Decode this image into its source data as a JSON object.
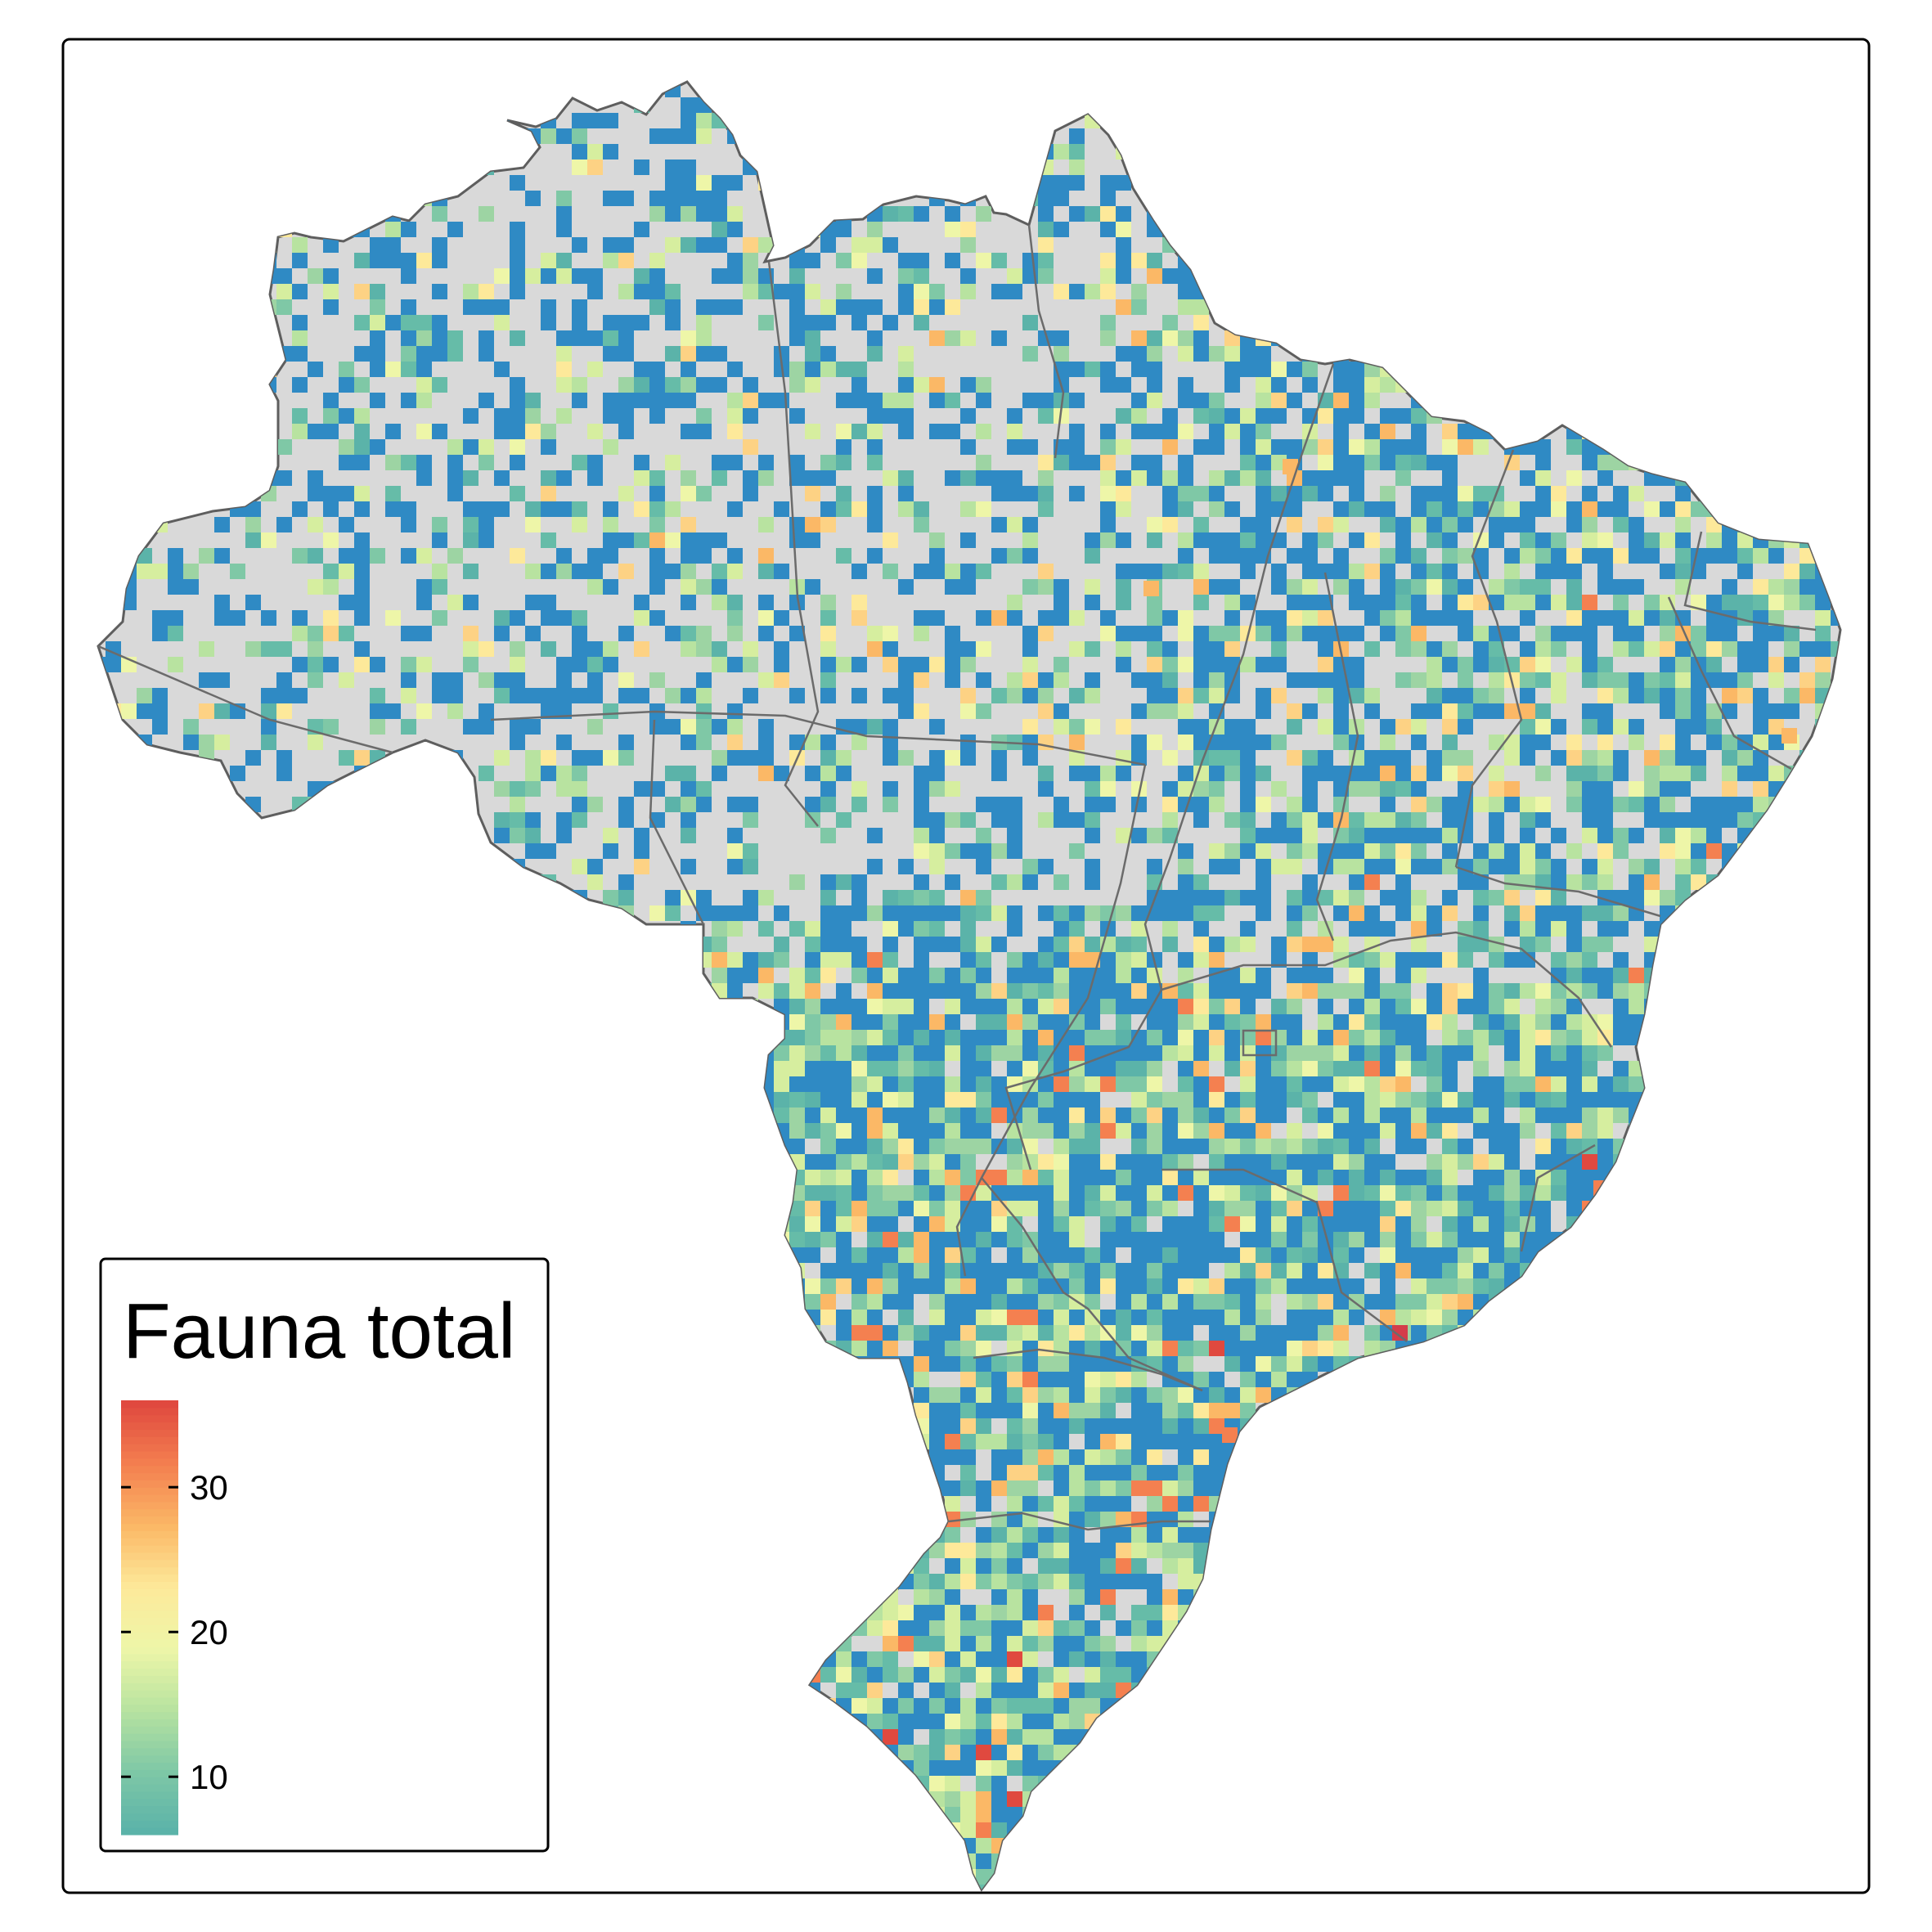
{
  "legend": {
    "title": "Fauna total",
    "min": 6,
    "max": 36,
    "ticks": [
      {
        "value": 10,
        "label": "10"
      },
      {
        "value": 20,
        "label": "20"
      },
      {
        "value": 30,
        "label": "30"
      }
    ],
    "colors": [
      "#5bb3a9",
      "#7fc8a6",
      "#b8e3a0",
      "#eef6a8",
      "#fde99a",
      "#fbb866",
      "#f48050",
      "#e0493f"
    ]
  },
  "map": {
    "country_fill": "#d9d9d9",
    "border_color": "#5e5e5e",
    "cell_low_color": "#2f8ac4",
    "richness_classes": [
      "low",
      "mid",
      "high",
      "very-high"
    ]
  }
}
